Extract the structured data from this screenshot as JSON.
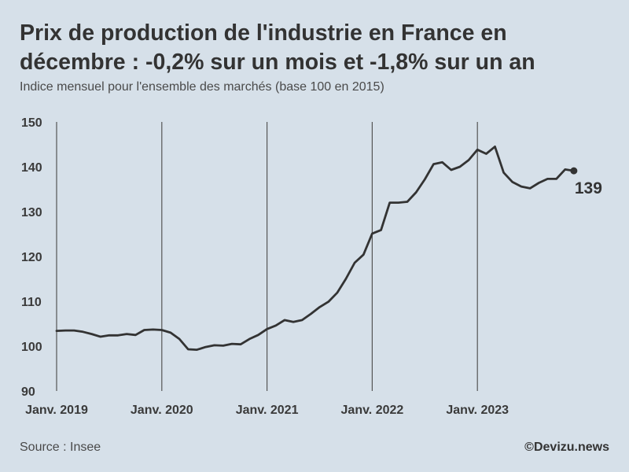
{
  "header": {
    "title": "Prix de production de l'industrie en France en décembre : -0,2% sur un mois et -1,8% sur un an",
    "subtitle": "Indice mensuel pour l'ensemble des marchés (base 100 en 2015)"
  },
  "footer": {
    "source": "Source : Insee",
    "credit": "©Devizu.news"
  },
  "colors": {
    "background": "#d6e0e9",
    "line": "#333333",
    "gridline": "#555555"
  },
  "chart_data": {
    "type": "line",
    "title": "Prix de production de l'industrie en France en décembre : -0,2% sur un mois et -1,8% sur un an",
    "subtitle": "Indice mensuel pour l'ensemble des marchés (base 100 en 2015)",
    "ylim": [
      90,
      150
    ],
    "yticks": [
      90,
      100,
      110,
      120,
      130,
      140,
      150
    ],
    "xticks": [
      {
        "label": "Janv. 2019",
        "month_index": 0
      },
      {
        "label": "Janv. 2020",
        "month_index": 12
      },
      {
        "label": "Janv. 2021",
        "month_index": 24
      },
      {
        "label": "Janv. 2022",
        "month_index": 36
      },
      {
        "label": "Janv. 2023",
        "month_index": 48
      }
    ],
    "grid": "vertical lines at January of each year",
    "end_label": "139",
    "series": [
      {
        "x": [
          "2019-01",
          "2019-02",
          "2019-03",
          "2019-04",
          "2019-05",
          "2019-06",
          "2019-07",
          "2019-08",
          "2019-09",
          "2019-10",
          "2019-11",
          "2019-12",
          "2020-01",
          "2020-02",
          "2020-03",
          "2020-04",
          "2020-05",
          "2020-06",
          "2020-07",
          "2020-08",
          "2020-09",
          "2020-10",
          "2020-11",
          "2020-12",
          "2021-01",
          "2021-02",
          "2021-03",
          "2021-04",
          "2021-05",
          "2021-06",
          "2021-07",
          "2021-08",
          "2021-09",
          "2021-10",
          "2021-11",
          "2021-12",
          "2022-01",
          "2022-02",
          "2022-03",
          "2022-04",
          "2022-05",
          "2022-06",
          "2022-07",
          "2022-08",
          "2022-09",
          "2022-10",
          "2022-11",
          "2022-12",
          "2023-01",
          "2023-02",
          "2023-03",
          "2023-04",
          "2023-05",
          "2023-06",
          "2023-07",
          "2023-08",
          "2023-09",
          "2023-10",
          "2023-11",
          "2023-12"
        ],
        "values": [
          103.4,
          103.5,
          103.5,
          103.2,
          102.7,
          102.1,
          102.4,
          102.4,
          102.7,
          102.5,
          103.6,
          103.7,
          103.6,
          103.0,
          101.6,
          99.3,
          99.2,
          99.8,
          100.2,
          100.1,
          100.5,
          100.4,
          101.6,
          102.5,
          103.8,
          104.6,
          105.8,
          105.4,
          105.8,
          107.2,
          108.7,
          109.9,
          111.9,
          115.0,
          118.6,
          120.4,
          125.1,
          125.9,
          132.0,
          132.0,
          132.2,
          134.3,
          137.2,
          140.6,
          141.0,
          139.3,
          140.0,
          141.5,
          143.8,
          142.9,
          144.5,
          138.7,
          136.6,
          135.6,
          135.2,
          136.4,
          137.3,
          137.3,
          139.4,
          139.1
        ]
      }
    ]
  }
}
